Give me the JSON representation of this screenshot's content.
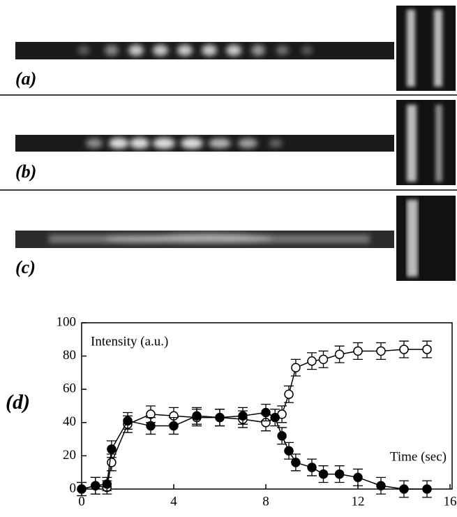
{
  "panel_labels": [
    "(a)",
    "(b)",
    "(c)"
  ],
  "chart_data": {
    "type": "line",
    "panel_label": "(d)",
    "annotations": [
      "Intensity (a.u.)",
      "Time (sec)"
    ],
    "xlim": [
      0,
      16
    ],
    "xticks": [
      0,
      4,
      8,
      12,
      16
    ],
    "ylim": [
      0,
      100
    ],
    "yticks": [
      0,
      20,
      40,
      60,
      80,
      100
    ],
    "series": [
      {
        "marker": "open",
        "color": "#000000",
        "x": [
          0,
          0.6,
          1.1,
          1.3,
          2,
          3,
          4,
          5,
          6,
          7,
          8,
          8.7,
          9,
          9.3,
          10,
          10.5,
          11.2,
          12,
          13,
          14,
          15
        ],
        "values": [
          0,
          2,
          1,
          16,
          39,
          45,
          44,
          43,
          43,
          42,
          40,
          45,
          57,
          73,
          77,
          78,
          81,
          83,
          83,
          84,
          84
        ],
        "errors": [
          4,
          5,
          4,
          5,
          5,
          5,
          5,
          5,
          5,
          5,
          5,
          5,
          5,
          5,
          5,
          5,
          5,
          5,
          5,
          5,
          5
        ]
      },
      {
        "marker": "filled",
        "color": "#000000",
        "x": [
          0,
          0.6,
          1.1,
          1.3,
          2,
          3,
          4,
          5,
          6,
          7,
          8,
          8.4,
          8.7,
          9,
          9.3,
          10,
          10.5,
          11.2,
          12,
          13,
          14,
          15
        ],
        "values": [
          0,
          2,
          3,
          24,
          41,
          38,
          38,
          44,
          43,
          44,
          46,
          43,
          32,
          23,
          16,
          13,
          9,
          9,
          7,
          2,
          0,
          0
        ],
        "errors": [
          4,
          5,
          4,
          5,
          5,
          5,
          5,
          5,
          5,
          5,
          5,
          5,
          5,
          5,
          5,
          5,
          5,
          5,
          5,
          5,
          5,
          5
        ]
      }
    ]
  }
}
